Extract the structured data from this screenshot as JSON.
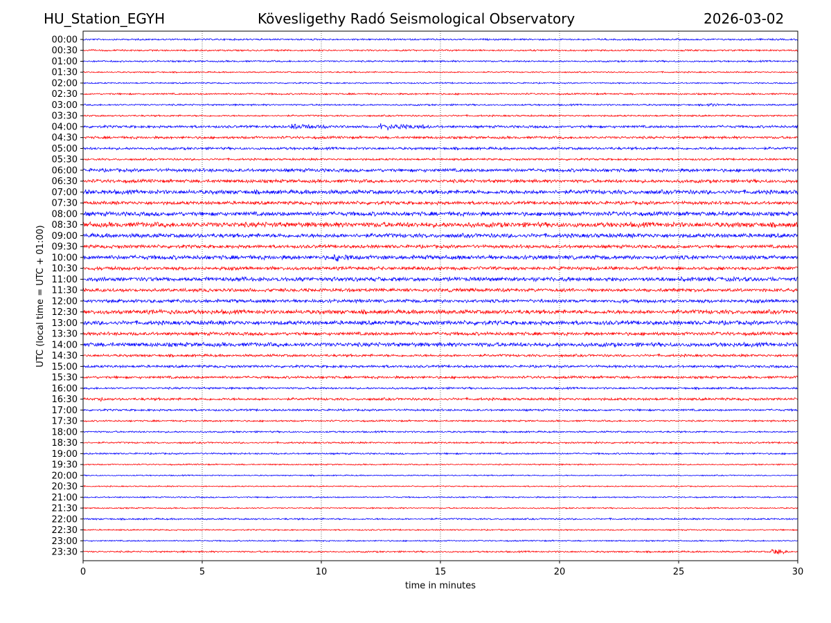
{
  "header": {
    "station": "HU_Station_EGYH",
    "title": "Kövesligethy Radó Seismological Observatory",
    "date": "2026-03-02"
  },
  "chart_data": {
    "type": "line",
    "title": "Kövesligethy Radó Seismological Observatory",
    "xlabel": "time in minutes",
    "ylabel": "UTC (local time = UTC + 01:00)",
    "xlim": [
      0,
      30
    ],
    "xticks": [
      "0",
      "5",
      "10",
      "15",
      "20",
      "25",
      "30"
    ],
    "grid": "vertical dotted",
    "colors": [
      "#0000ff",
      "#ff0000"
    ],
    "rows": [
      "00:00",
      "00:30",
      "01:00",
      "01:30",
      "02:00",
      "02:30",
      "03:00",
      "03:30",
      "04:00",
      "04:30",
      "05:00",
      "05:30",
      "06:00",
      "06:30",
      "07:00",
      "07:30",
      "08:00",
      "08:30",
      "09:00",
      "09:30",
      "10:00",
      "10:30",
      "11:00",
      "11:30",
      "12:00",
      "12:30",
      "13:00",
      "13:30",
      "14:00",
      "14:30",
      "15:00",
      "15:30",
      "16:00",
      "16:30",
      "17:00",
      "17:30",
      "18:00",
      "18:30",
      "19:00",
      "19:30",
      "20:00",
      "20:30",
      "21:00",
      "21:30",
      "22:00",
      "22:30",
      "23:00",
      "23:30"
    ],
    "noise_level": [
      1,
      1,
      1,
      0.8,
      0.8,
      1,
      1,
      1,
      1.5,
      1.5,
      1.5,
      1.2,
      2,
      2,
      2.5,
      2,
      2.5,
      3,
      2.5,
      2,
      2.5,
      2,
      2.5,
      2,
      2,
      2.5,
      2.5,
      2,
      2.5,
      1.5,
      1.5,
      1.5,
      1.2,
      1.5,
      1.2,
      1,
      1,
      1,
      1,
      0.8,
      0.7,
      0.7,
      0.8,
      0.8,
      1,
      0.8,
      0.8,
      1
    ],
    "events": [
      {
        "row": "03:00",
        "start_min": 26.2,
        "end_min": 26.7,
        "amplitude": 4
      },
      {
        "row": "04:00",
        "start_min": 8.7,
        "end_min": 10.6,
        "amplitude": 5
      },
      {
        "row": "04:00",
        "start_min": 12.4,
        "end_min": 14.6,
        "amplitude": 6
      },
      {
        "row": "07:00",
        "start_min": 0.1,
        "end_min": 0.9,
        "amplitude": 4
      },
      {
        "row": "08:00",
        "start_min": 26.7,
        "end_min": 27.5,
        "amplitude": 5
      },
      {
        "row": "10:00",
        "start_min": 10.5,
        "end_min": 11.6,
        "amplitude": 7
      },
      {
        "row": "10:00",
        "start_min": 12.6,
        "end_min": 13.0,
        "amplitude": 4
      },
      {
        "row": "10:00",
        "start_min": 19.0,
        "end_min": 19.5,
        "amplitude": 4
      },
      {
        "row": "12:30",
        "start_min": 3.5,
        "end_min": 4.0,
        "amplitude": 4
      },
      {
        "row": "13:00",
        "start_min": 17.5,
        "end_min": 17.8,
        "amplitude": 4
      },
      {
        "row": "16:30",
        "start_min": 0.7,
        "end_min": 0.9,
        "amplitude": 4
      },
      {
        "row": "18:30",
        "start_min": 21.5,
        "end_min": 21.8,
        "amplitude": 3
      },
      {
        "row": "23:30",
        "start_min": 28.9,
        "end_min": 29.6,
        "amplitude": 6
      }
    ]
  }
}
